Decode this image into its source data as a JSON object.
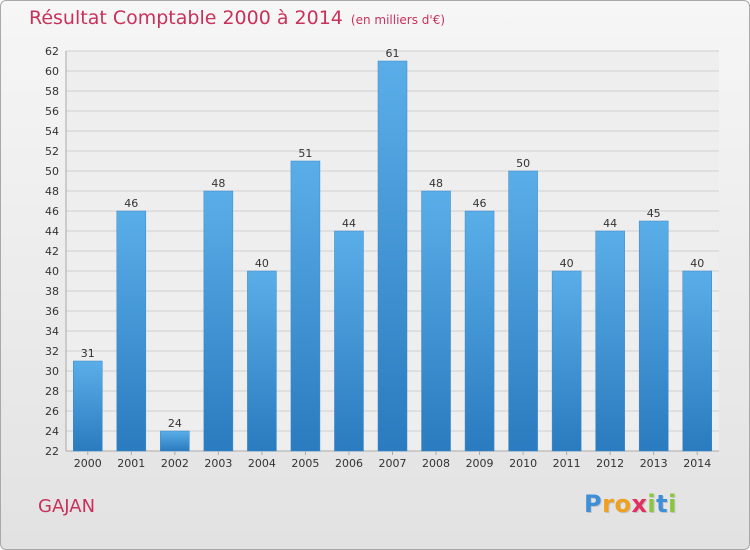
{
  "chart_data": {
    "type": "bar",
    "title": "Résultat Comptable 2000 à 2014",
    "unit_note": "(en milliers d'€)",
    "categories": [
      "2000",
      "2001",
      "2002",
      "2003",
      "2004",
      "2005",
      "2006",
      "2007",
      "2008",
      "2009",
      "2010",
      "2011",
      "2012",
      "2013",
      "2014"
    ],
    "values": [
      31,
      46,
      24,
      48,
      40,
      51,
      44,
      61,
      48,
      46,
      50,
      40,
      44,
      45,
      40
    ],
    "ylim": [
      22,
      62
    ],
    "ytick_step": 2,
    "xlabel": "",
    "ylabel": "",
    "grid": true,
    "bar_color_top": "#5aaee8",
    "bar_color_bottom": "#2a7bbf"
  },
  "commune": "GAJAN",
  "brand": {
    "letters": [
      "P",
      "r",
      "o",
      "x",
      "i",
      "t",
      "i"
    ],
    "colors": [
      "#3d8fd8",
      "#f0a020",
      "#f0a020",
      "#e03060",
      "#8cc63f",
      "#3d8fd8",
      "#8cc63f"
    ]
  }
}
